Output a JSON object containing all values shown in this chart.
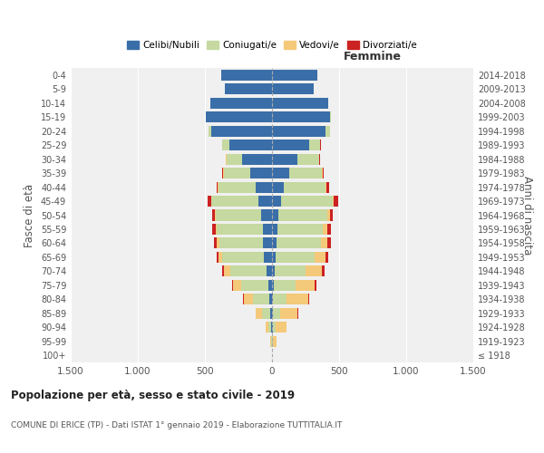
{
  "age_groups": [
    "100+",
    "95-99",
    "90-94",
    "85-89",
    "80-84",
    "75-79",
    "70-74",
    "65-69",
    "60-64",
    "55-59",
    "50-54",
    "45-49",
    "40-44",
    "35-39",
    "30-34",
    "25-29",
    "20-24",
    "15-19",
    "10-14",
    "5-9",
    "0-4"
  ],
  "birth_years": [
    "≤ 1918",
    "1919-1923",
    "1924-1928",
    "1929-1933",
    "1934-1938",
    "1939-1943",
    "1944-1948",
    "1949-1953",
    "1954-1958",
    "1959-1963",
    "1964-1968",
    "1969-1973",
    "1974-1978",
    "1979-1983",
    "1984-1988",
    "1989-1993",
    "1994-1998",
    "1999-2003",
    "2004-2008",
    "2009-2013",
    "2014-2018"
  ],
  "male": {
    "celibi": [
      0,
      2,
      5,
      15,
      20,
      30,
      40,
      60,
      65,
      70,
      80,
      100,
      120,
      160,
      220,
      320,
      450,
      490,
      460,
      350,
      380
    ],
    "coniugati": [
      0,
      5,
      20,
      60,
      120,
      200,
      270,
      310,
      330,
      340,
      340,
      350,
      280,
      200,
      120,
      50,
      20,
      5,
      2,
      0,
      0
    ],
    "vedovi": [
      0,
      5,
      20,
      50,
      70,
      60,
      50,
      30,
      15,
      10,
      5,
      5,
      5,
      2,
      2,
      0,
      0,
      0,
      0,
      0,
      0
    ],
    "divorziati": [
      0,
      0,
      0,
      0,
      5,
      10,
      15,
      15,
      20,
      25,
      20,
      25,
      10,
      8,
      5,
      2,
      0,
      0,
      0,
      0,
      0
    ]
  },
  "female": {
    "nubili": [
      0,
      2,
      5,
      10,
      10,
      15,
      20,
      30,
      35,
      40,
      50,
      70,
      90,
      130,
      190,
      280,
      400,
      430,
      420,
      310,
      340
    ],
    "coniugate": [
      0,
      5,
      20,
      50,
      100,
      160,
      230,
      290,
      330,
      340,
      360,
      380,
      310,
      240,
      160,
      80,
      30,
      10,
      2,
      0,
      0
    ],
    "vedove": [
      2,
      30,
      80,
      130,
      160,
      140,
      120,
      80,
      50,
      30,
      20,
      10,
      8,
      5,
      2,
      0,
      0,
      0,
      0,
      0,
      0
    ],
    "divorziate": [
      0,
      0,
      0,
      5,
      10,
      15,
      20,
      20,
      25,
      30,
      25,
      30,
      15,
      10,
      5,
      2,
      0,
      0,
      0,
      0,
      0
    ]
  },
  "colors": {
    "celibi": "#3a6ea8",
    "coniugati": "#c5d9a0",
    "vedovi": "#f5c97a",
    "divorziati": "#cc2222"
  },
  "xlim": 1500,
  "title": "Popolazione per età, sesso e stato civile - 2019",
  "subtitle": "COMUNE DI ERICE (TP) - Dati ISTAT 1° gennaio 2019 - Elaborazione TUTTITALIA.IT",
  "ylabel_left": "Fasce di età",
  "ylabel_right": "Anni di nascita",
  "xlabel_femmine": "Femmine",
  "legend_labels": [
    "Celibi/Nubili",
    "Coniugati/e",
    "Vedovi/e",
    "Divorziati/e"
  ],
  "bg_color": "#ffffff",
  "grid_color": "#cccccc",
  "ax_bg_color": "#f0f0f0"
}
